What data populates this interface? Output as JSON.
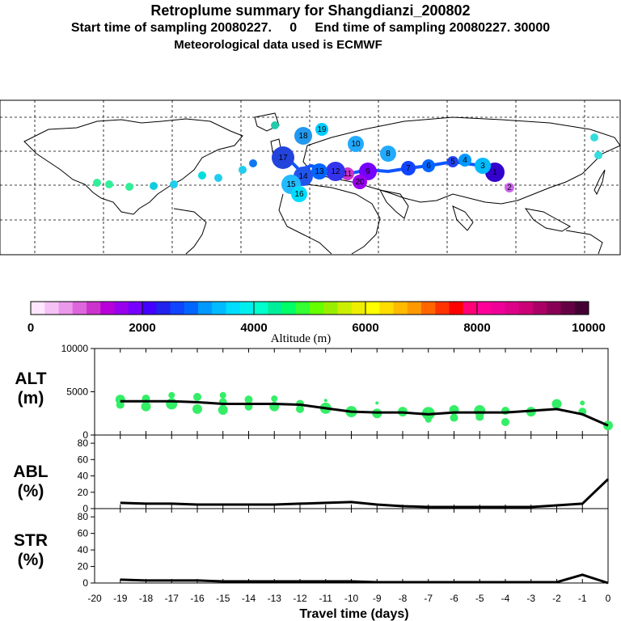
{
  "header": {
    "title": "Retroplume summary for Shangdianzi_200802",
    "subtitle": "Start time of sampling 20080227.     0     End time of sampling 20080227. 30000",
    "met_note": "Meteorological data used is ECMWF"
  },
  "colorbar": {
    "label": "Altitude (m)",
    "ticks": [
      "0",
      "2000",
      "4000",
      "6000",
      "8000",
      "10000"
    ],
    "colors": [
      "#ffe6ff",
      "#f5c2f5",
      "#eb99eb",
      "#dd66dd",
      "#cc33cc",
      "#b800d8",
      "#9900ee",
      "#7700ff",
      "#4400ff",
      "#2222ee",
      "#1144ff",
      "#0066ff",
      "#0099ff",
      "#00bbff",
      "#00ddff",
      "#00eeee",
      "#00ffcc",
      "#00ee99",
      "#00ff66",
      "#33ff33",
      "#66ff00",
      "#99ee00",
      "#ccee00",
      "#eeee00",
      "#ffff00",
      "#ffdd00",
      "#ffbb00",
      "#ff9900",
      "#ff6600",
      "#ff3300",
      "#ff0000",
      "#ff0077",
      "#ff0099",
      "#ee0099",
      "#dd0088",
      "#cc0077",
      "#aa0066",
      "#880055",
      "#660044",
      "#440033"
    ]
  },
  "chart_data": [
    {
      "type": "scatter",
      "name": "map",
      "description_labels": [
        "1",
        "2",
        "3",
        "4",
        "5",
        "6",
        "7",
        "8",
        "9",
        "10",
        "11",
        "12",
        "13",
        "14",
        "15",
        "16",
        "17",
        "18",
        "19",
        "20"
      ]
    },
    {
      "type": "line",
      "panel": "ALT",
      "ylabel": "ALT\n(m)",
      "ylim": [
        0,
        10000
      ],
      "yticks": [
        "10000",
        "5000",
        "0"
      ],
      "x": [
        -19,
        -18,
        -17,
        -16,
        -15,
        -14,
        -13,
        -12,
        -11,
        -10,
        -9,
        -8,
        -7,
        -6,
        -5,
        -4,
        -3,
        -2,
        -1,
        0
      ],
      "values": [
        3900,
        3900,
        3900,
        3800,
        3600,
        3600,
        3600,
        3500,
        3100,
        2700,
        2600,
        2600,
        2400,
        2600,
        2600,
        2600,
        2800,
        3000,
        2400,
        1100
      ],
      "points": [
        {
          "x": -19,
          "y": 4100,
          "r": 6
        },
        {
          "x": -19,
          "y": 3500,
          "r": 5
        },
        {
          "x": -18,
          "y": 4200,
          "r": 5
        },
        {
          "x": -18,
          "y": 3300,
          "r": 6
        },
        {
          "x": -17,
          "y": 4600,
          "r": 4
        },
        {
          "x": -17,
          "y": 3600,
          "r": 7
        },
        {
          "x": -16,
          "y": 4400,
          "r": 5
        },
        {
          "x": -16,
          "y": 3000,
          "r": 6
        },
        {
          "x": -15,
          "y": 4600,
          "r": 4
        },
        {
          "x": -15,
          "y": 3800,
          "r": 5
        },
        {
          "x": -15,
          "y": 2900,
          "r": 6
        },
        {
          "x": -14,
          "y": 4100,
          "r": 5
        },
        {
          "x": -14,
          "y": 3300,
          "r": 5
        },
        {
          "x": -13,
          "y": 4200,
          "r": 4
        },
        {
          "x": -13,
          "y": 3300,
          "r": 6
        },
        {
          "x": -12,
          "y": 3600,
          "r": 5
        },
        {
          "x": -12,
          "y": 3000,
          "r": 5
        },
        {
          "x": -11,
          "y": 4000,
          "r": 2
        },
        {
          "x": -11,
          "y": 3100,
          "r": 7
        },
        {
          "x": -10,
          "y": 2700,
          "r": 7
        },
        {
          "x": -9,
          "y": 3700,
          "r": 2
        },
        {
          "x": -9,
          "y": 2500,
          "r": 6
        },
        {
          "x": -8,
          "y": 2700,
          "r": 6
        },
        {
          "x": -7,
          "y": 2500,
          "r": 8
        },
        {
          "x": -7,
          "y": 1800,
          "r": 4
        },
        {
          "x": -6,
          "y": 2900,
          "r": 6
        },
        {
          "x": -6,
          "y": 2000,
          "r": 5
        },
        {
          "x": -5,
          "y": 2800,
          "r": 7
        },
        {
          "x": -5,
          "y": 2100,
          "r": 5
        },
        {
          "x": -4,
          "y": 2800,
          "r": 5
        },
        {
          "x": -4,
          "y": 1500,
          "r": 5
        },
        {
          "x": -3,
          "y": 2700,
          "r": 6
        },
        {
          "x": -2,
          "y": 3600,
          "r": 6
        },
        {
          "x": -1,
          "y": 3700,
          "r": 3
        },
        {
          "x": -1,
          "y": 2700,
          "r": 5
        },
        {
          "x": 0,
          "y": 1100,
          "r": 6
        }
      ]
    },
    {
      "type": "line",
      "panel": "ABL",
      "ylabel": "ABL\n(%)",
      "ylim": [
        0,
        90
      ],
      "yticks": [
        "80",
        "60",
        "40",
        "20",
        "0"
      ],
      "x": [
        -19,
        -18,
        -17,
        -16,
        -15,
        -14,
        -13,
        -12,
        -11,
        -10,
        -9,
        -8,
        -7,
        -6,
        -5,
        -4,
        -3,
        -2,
        -1,
        0
      ],
      "values": [
        7,
        6,
        6,
        5,
        5,
        5,
        5,
        6,
        7,
        8,
        5,
        3,
        2,
        2,
        2,
        2,
        2,
        4,
        6,
        36
      ]
    },
    {
      "type": "line",
      "panel": "STR",
      "ylabel": "STR\n(%)",
      "ylim": [
        0,
        90
      ],
      "yticks": [
        "80",
        "60",
        "40",
        "20",
        "0"
      ],
      "x": [
        -19,
        -18,
        -17,
        -16,
        -15,
        -14,
        -13,
        -12,
        -11,
        -10,
        -9,
        -8,
        -7,
        -6,
        -5,
        -4,
        -3,
        -2,
        -1,
        0
      ],
      "values": [
        4,
        3,
        3,
        3,
        2,
        2,
        2,
        2,
        2,
        2,
        1,
        1,
        1,
        1,
        1,
        1,
        1,
        1,
        10,
        0
      ],
      "xlabel": "Travel time (days)",
      "xticks": [
        "-20",
        "-19",
        "-18",
        "-17",
        "-16",
        "-15",
        "-14",
        "-13",
        "-12",
        "-11",
        "-10",
        "-9",
        "-8",
        "-7",
        "-6",
        "-5",
        "-4",
        "-3",
        "-2",
        "-1",
        "0"
      ]
    }
  ]
}
